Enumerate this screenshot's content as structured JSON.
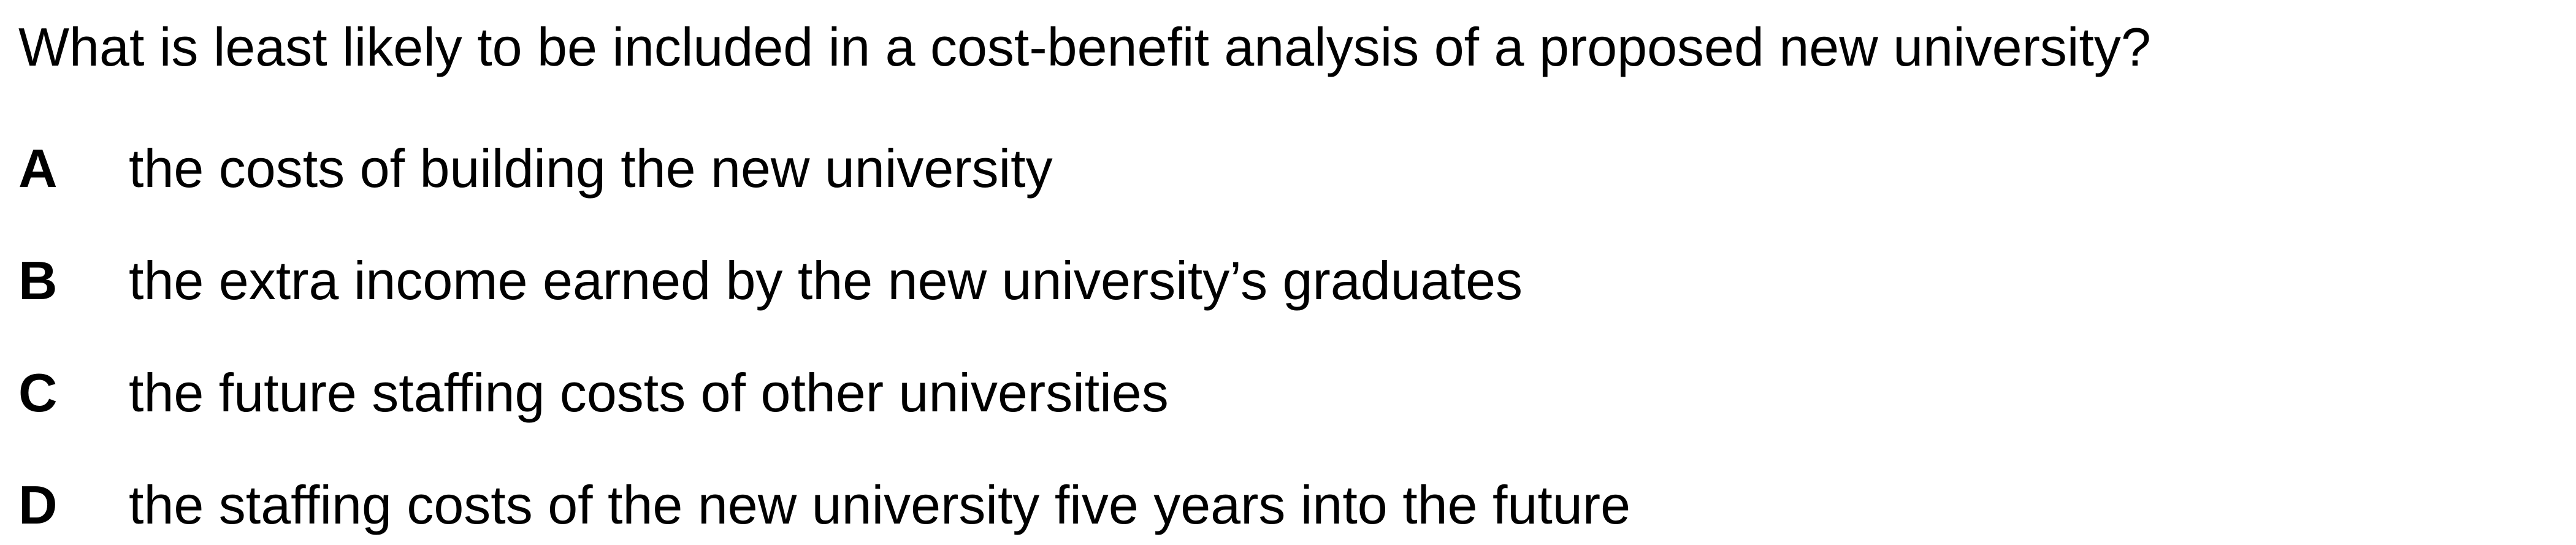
{
  "question": {
    "text": "What is least likely to be included in a cost-benefit analysis of a proposed new university?"
  },
  "options": [
    {
      "letter": "A",
      "text": "the costs of building the new university"
    },
    {
      "letter": "B",
      "text": "the extra income earned by the new university’s graduates"
    },
    {
      "letter": "C",
      "text": "the future staffing costs of other universities"
    },
    {
      "letter": "D",
      "text": "the staffing costs of the new university five years into the future"
    }
  ]
}
